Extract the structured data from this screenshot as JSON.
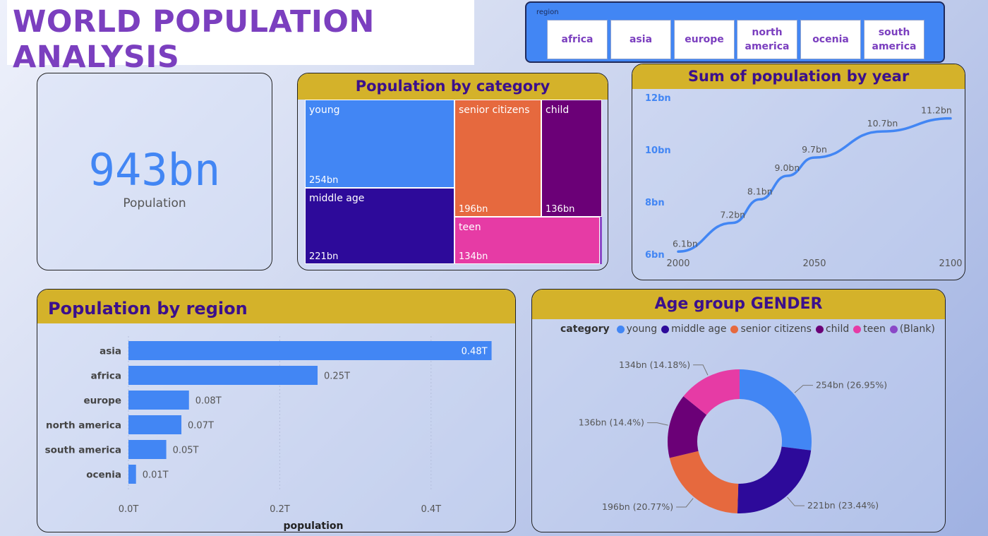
{
  "title": "WORLD POPULATION ANALYSIS",
  "slicer": {
    "label": "region",
    "options": [
      "africa",
      "asia",
      "europe",
      "north america",
      "ocenia",
      "south america"
    ]
  },
  "kpi": {
    "value": "943bn",
    "label": "Population"
  },
  "treemap": {
    "title": "Population by category",
    "cells": [
      {
        "name": "young",
        "value": "254bn"
      },
      {
        "name": "middle age",
        "value": "221bn"
      },
      {
        "name": "senior citizens",
        "value": "196bn"
      },
      {
        "name": "child",
        "value": "136bn"
      },
      {
        "name": "teen",
        "value": "134bn"
      }
    ]
  },
  "line": {
    "title": "Sum of population by year"
  },
  "bar": {
    "title": "Population by region"
  },
  "donut": {
    "title": "Age group GENDER",
    "legend_title": "category"
  },
  "colors": {
    "accent": "#4286f4",
    "header": "#d4b22a",
    "header_text": "#3b108c",
    "young": "#4286f4",
    "middle_age": "#2d0a9a",
    "senior_citizens": "#e6693e",
    "child": "#6b0077",
    "teen": "#e63ba5",
    "blank": "#8a48c7"
  },
  "chart_data": [
    {
      "type": "heatmap",
      "title": "Population by category",
      "categories": [
        "young",
        "middle age",
        "senior citizens",
        "child",
        "teen"
      ],
      "values": [
        254,
        221,
        196,
        136,
        134
      ],
      "value_labels": [
        "254bn",
        "221bn",
        "196bn",
        "136bn",
        "134bn"
      ]
    },
    {
      "type": "line",
      "title": "Sum of population by year",
      "x": [
        2000,
        2020,
        2030,
        2040,
        2050,
        2075,
        2100
      ],
      "series": [
        {
          "values": [
            6.1,
            7.2,
            8.1,
            9.0,
            9.7,
            10.7,
            11.2
          ]
        }
      ],
      "data_labels": [
        "6.1bn",
        "7.2bn",
        "8.1bn",
        "9.0bn",
        "9.7bn",
        "10.7bn",
        "11.2bn"
      ],
      "xticks": [
        "2000",
        "2050",
        "2100"
      ],
      "yticks": [
        "6bn",
        "8bn",
        "10bn",
        "12bn"
      ],
      "ylim": [
        6,
        12
      ]
    },
    {
      "type": "bar",
      "orientation": "horizontal",
      "title": "Population by region",
      "categories": [
        "asia",
        "africa",
        "europe",
        "north america",
        "south america",
        "ocenia"
      ],
      "values": [
        0.48,
        0.25,
        0.08,
        0.07,
        0.05,
        0.01
      ],
      "data_labels": [
        "0.48T",
        "0.25T",
        "0.08T",
        "0.07T",
        "0.05T",
        "0.01T"
      ],
      "xlabel": "population",
      "xticks": [
        "0.0T",
        "0.2T",
        "0.4T"
      ],
      "xlim": [
        0,
        0.5
      ]
    },
    {
      "type": "pie",
      "title": "Age group GENDER",
      "legend_title": "category",
      "legend": [
        "young",
        "middle age",
        "senior citizens",
        "child",
        "teen",
        "(Blank)"
      ],
      "categories": [
        "young",
        "middle age",
        "senior citizens",
        "child",
        "teen"
      ],
      "values": [
        254,
        221,
        196,
        136,
        134
      ],
      "data_labels": [
        "254bn (26.95%)",
        "221bn (23.44%)",
        "196bn (20.77%)",
        "136bn (14.4%)",
        "134bn (14.18%)"
      ]
    }
  ]
}
